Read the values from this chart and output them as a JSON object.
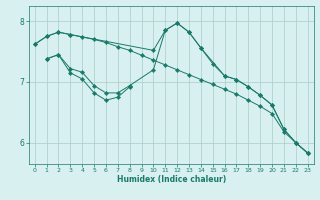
{
  "xlabel": "Humidex (Indice chaleur)",
  "bg_color": "#d8f0f0",
  "grid_color": "#aacccc",
  "line_color": "#1a7a6a",
  "xlim": [
    -0.5,
    23.5
  ],
  "ylim": [
    5.65,
    8.25
  ],
  "yticks": [
    6,
    7,
    8
  ],
  "xticks": [
    0,
    1,
    2,
    3,
    4,
    5,
    6,
    7,
    8,
    9,
    10,
    11,
    12,
    13,
    14,
    15,
    16,
    17,
    18,
    19,
    20,
    21,
    22,
    23
  ],
  "line1_x": [
    0,
    1,
    2,
    3,
    4,
    5,
    6,
    7,
    8,
    9,
    10,
    11,
    12,
    13,
    14,
    15,
    16,
    17,
    18,
    19,
    20,
    21,
    22,
    23
  ],
  "line1_y": [
    7.62,
    7.75,
    7.82,
    7.78,
    7.74,
    7.7,
    7.65,
    7.58,
    7.52,
    7.44,
    7.36,
    7.28,
    7.2,
    7.12,
    7.04,
    6.96,
    6.88,
    6.8,
    6.7,
    6.6,
    6.48,
    6.18,
    6.0,
    5.83
  ],
  "line2_x": [
    0,
    1,
    2,
    3,
    10,
    11,
    12,
    13,
    14,
    15,
    16,
    17,
    18,
    19,
    20,
    21,
    22,
    23
  ],
  "line2_y": [
    7.62,
    7.75,
    7.82,
    7.78,
    7.52,
    7.85,
    7.97,
    7.82,
    7.56,
    7.3,
    7.1,
    7.04,
    6.92,
    6.78,
    6.62,
    6.22,
    6.0,
    5.83
  ],
  "line3_x": [
    1,
    2,
    3,
    4,
    5,
    6,
    7,
    8,
    10,
    11,
    12,
    13,
    14,
    16,
    17,
    18,
    19,
    20,
    21,
    22,
    23
  ],
  "line3_y": [
    7.38,
    7.45,
    7.22,
    7.16,
    6.94,
    6.82,
    6.82,
    6.94,
    7.2,
    7.85,
    7.97,
    7.82,
    7.56,
    7.1,
    7.04,
    6.92,
    6.78,
    6.62,
    6.22,
    6.0,
    5.83
  ],
  "line4_x": [
    1,
    2,
    3,
    4,
    5,
    6,
    7,
    8
  ],
  "line4_y": [
    7.38,
    7.45,
    7.15,
    7.05,
    6.82,
    6.7,
    6.75,
    6.92
  ]
}
